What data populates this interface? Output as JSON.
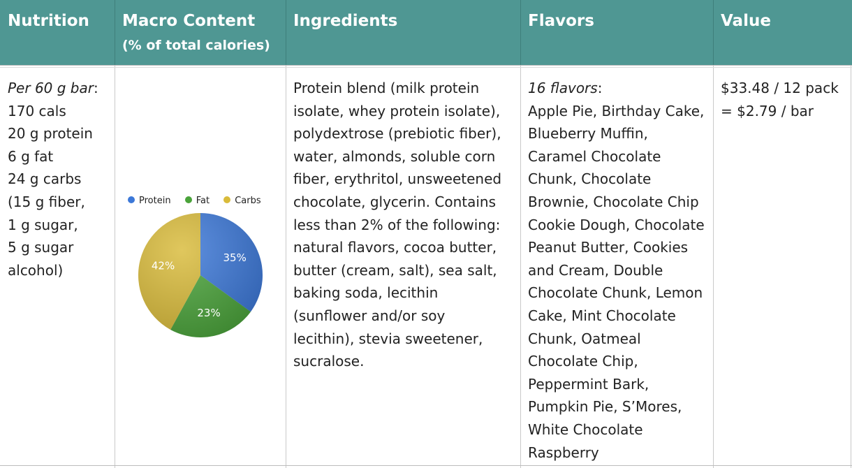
{
  "header": {
    "nutrition": "Nutrition",
    "macro_title": "Macro Content",
    "macro_sub": "(% of total calories)",
    "ingredients": "Ingredients",
    "flavors": "Flavors",
    "value": "Value"
  },
  "nutrition": {
    "serving_italic": "Per 60 g bar",
    "serving_colon": ":",
    "lines": [
      "170 cals",
      "20 g protein",
      "6 g fat",
      "24 g carbs",
      "(15 g fiber,",
      "1 g sugar,",
      "5 g sugar",
      "alcohol)"
    ]
  },
  "ingredients": {
    "lines": [
      "Protein blend (milk protein",
      "isolate, whey protein isolate),",
      "polydextrose (prebiotic fiber),",
      "water, almonds, soluble corn",
      "fiber, erythritol, unsweetened",
      "chocolate, glycerin. Contains",
      "less than 2% of the following:",
      "natural flavors, cocoa butter,",
      "butter (cream, salt), sea salt,",
      "baking soda, lecithin",
      "(sunflower and/or soy",
      "lecithin), stevia sweetener,",
      "sucralose."
    ]
  },
  "flavors": {
    "count_italic": "16 flavors",
    "count_colon": ":",
    "lines": [
      "Apple Pie, Birthday Cake,",
      "Blueberry Muffin,",
      "Caramel Chocolate",
      "Chunk, Chocolate",
      "Brownie, Chocolate Chip",
      "Cookie Dough, Chocolate",
      "Peanut Butter, Cookies",
      "and Cream, Double",
      "Chocolate Chunk, Lemon",
      "Cake, Mint Chocolate",
      "Chunk, Oatmeal",
      "Chocolate Chip,",
      "Peppermint Bark,",
      "Pumpkin Pie, S’Mores,",
      "White Chocolate",
      "Raspberry"
    ]
  },
  "value": {
    "lines": [
      "$33.48 / 12 pack",
      "= $2.79 / bar"
    ]
  },
  "colors": {
    "header_bg": "#4f9793",
    "protein": "#3c78d8",
    "fat": "#4aa33a",
    "carbs": "#d9bb3a"
  },
  "chart_data": {
    "type": "pie",
    "series": [
      {
        "name": "Protein",
        "value": 35,
        "label": "35%",
        "color": "#3c78d8"
      },
      {
        "name": "Fat",
        "value": 23,
        "label": "23%",
        "color": "#4aa33a"
      },
      {
        "name": "Carbs",
        "value": 42,
        "label": "42%",
        "color": "#d9bb3a"
      }
    ],
    "legend_position": "top"
  }
}
